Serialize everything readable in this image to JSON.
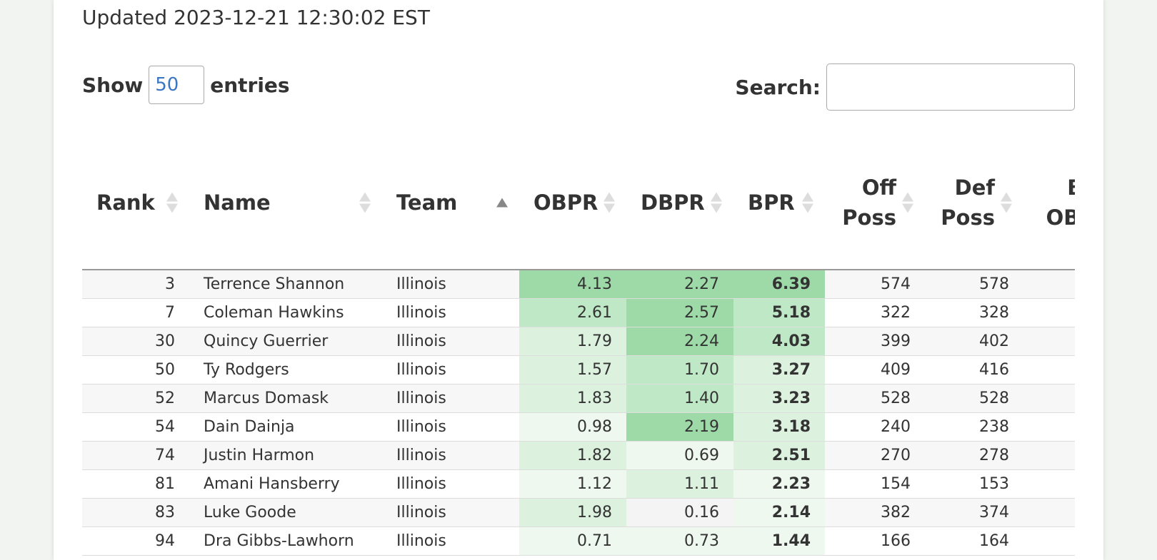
{
  "updated_text": "Updated 2023-12-21 12:30:02 EST",
  "length": {
    "show_label": "Show",
    "value": "50",
    "entries_label": "entries"
  },
  "search": {
    "label": "Search:",
    "value": ""
  },
  "columns": [
    {
      "key": "rank",
      "lines": [
        "Rank"
      ],
      "align": "left",
      "sort": "none"
    },
    {
      "key": "name",
      "lines": [
        "Name"
      ],
      "align": "left",
      "sort": "none"
    },
    {
      "key": "team",
      "lines": [
        "Team"
      ],
      "align": "left",
      "sort": "asc"
    },
    {
      "key": "obpr",
      "lines": [
        "OBPR"
      ],
      "align": "left",
      "sort": "none"
    },
    {
      "key": "dbpr",
      "lines": [
        "DBPR"
      ],
      "align": "left",
      "sort": "none"
    },
    {
      "key": "bpr",
      "lines": [
        "BPR"
      ],
      "align": "left",
      "sort": "none"
    },
    {
      "key": "off_poss",
      "lines": [
        "Off",
        "Poss"
      ],
      "align": "right",
      "sort": "none"
    },
    {
      "key": "def_poss",
      "lines": [
        "Def",
        "Poss"
      ],
      "align": "right",
      "sort": "none"
    },
    {
      "key": "box_obpr",
      "lines": [
        "Box",
        "OBPR"
      ],
      "align": "right",
      "sort": "none"
    }
  ],
  "rows": [
    {
      "rank": "3",
      "name": "Terrence Shannon",
      "team": "Illinois",
      "obpr": "4.13",
      "dbpr": "2.27",
      "bpr": "6.39",
      "off_poss": "574",
      "def_poss": "578"
    },
    {
      "rank": "7",
      "name": "Coleman Hawkins",
      "team": "Illinois",
      "obpr": "2.61",
      "dbpr": "2.57",
      "bpr": "5.18",
      "off_poss": "322",
      "def_poss": "328"
    },
    {
      "rank": "30",
      "name": "Quincy Guerrier",
      "team": "Illinois",
      "obpr": "1.79",
      "dbpr": "2.24",
      "bpr": "4.03",
      "off_poss": "399",
      "def_poss": "402"
    },
    {
      "rank": "50",
      "name": "Ty Rodgers",
      "team": "Illinois",
      "obpr": "1.57",
      "dbpr": "1.70",
      "bpr": "3.27",
      "off_poss": "409",
      "def_poss": "416"
    },
    {
      "rank": "52",
      "name": "Marcus Domask",
      "team": "Illinois",
      "obpr": "1.83",
      "dbpr": "1.40",
      "bpr": "3.23",
      "off_poss": "528",
      "def_poss": "528"
    },
    {
      "rank": "54",
      "name": "Dain Dainja",
      "team": "Illinois",
      "obpr": "0.98",
      "dbpr": "2.19",
      "bpr": "3.18",
      "off_poss": "240",
      "def_poss": "238"
    },
    {
      "rank": "74",
      "name": "Justin Harmon",
      "team": "Illinois",
      "obpr": "1.82",
      "dbpr": "0.69",
      "bpr": "2.51",
      "off_poss": "270",
      "def_poss": "278"
    },
    {
      "rank": "81",
      "name": "Amani Hansberry",
      "team": "Illinois",
      "obpr": "1.12",
      "dbpr": "1.11",
      "bpr": "2.23",
      "off_poss": "154",
      "def_poss": "153"
    },
    {
      "rank": "83",
      "name": "Luke Goode",
      "team": "Illinois",
      "obpr": "1.98",
      "dbpr": "0.16",
      "bpr": "2.14",
      "off_poss": "382",
      "def_poss": "374"
    },
    {
      "rank": "94",
      "name": "Dra Gibbs-Lawhorn",
      "team": "Illinois",
      "obpr": "0.71",
      "dbpr": "0.73",
      "bpr": "1.44",
      "off_poss": "166",
      "def_poss": "164"
    }
  ],
  "heat_colors": {
    "strong": "#9edaa8",
    "medium": "#bfe8c6",
    "light": "#dcf2df",
    "faint": "#eef8ef",
    "none": "#f4f4f4"
  }
}
